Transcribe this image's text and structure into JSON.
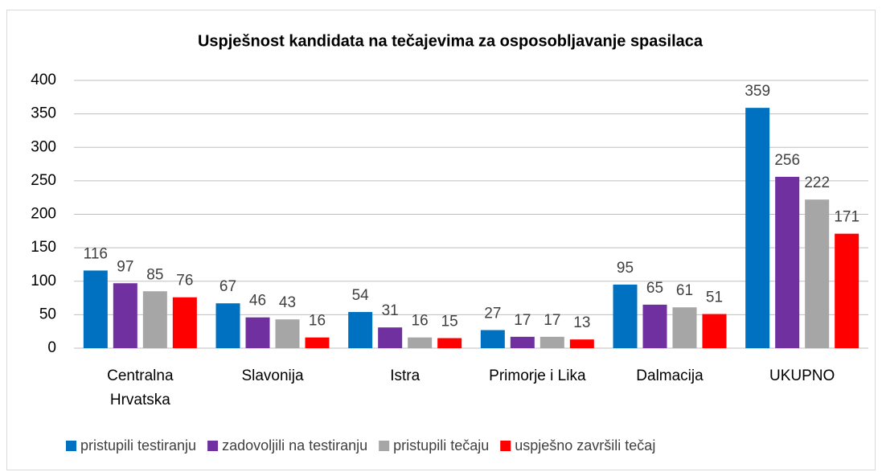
{
  "chart_data": {
    "type": "bar",
    "title": "Uspješnost kandidata na tečajevima za osposobljavanje spasilaca",
    "categories": [
      "Centralna Hrvatska",
      "Slavonija",
      "Istra",
      "Primorje i Lika",
      "Dalmacija",
      "UKUPNO"
    ],
    "series": [
      {
        "name": "pristupili testiranju",
        "color": "#0070c0",
        "values": [
          116,
          67,
          54,
          27,
          95,
          359
        ]
      },
      {
        "name": "zadovoljili na testiranju",
        "color": "#7030a0",
        "values": [
          97,
          46,
          31,
          17,
          65,
          256
        ]
      },
      {
        "name": "pristupili tečaju",
        "color": "#a6a6a6",
        "values": [
          85,
          43,
          16,
          17,
          61,
          222
        ]
      },
      {
        "name": "uspješno završili tečaj",
        "color": "#ff0000",
        "values": [
          76,
          16,
          15,
          13,
          51,
          171
        ]
      }
    ],
    "ylim": [
      0,
      400
    ],
    "yticks": [
      0,
      50,
      100,
      150,
      200,
      250,
      300,
      350,
      400
    ],
    "grid": true,
    "legend": "bottom"
  }
}
